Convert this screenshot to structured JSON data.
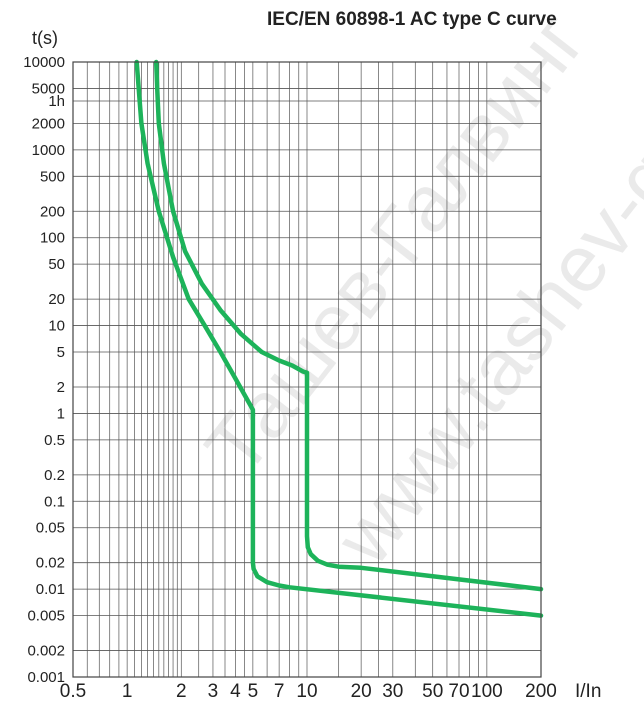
{
  "chart_data": {
    "type": "line",
    "title": "IEC/EN 60898-1 AC type C curve",
    "ylabel": "t(s)",
    "xlabel": "I/In",
    "y_scale": "log",
    "ylim": [
      0.001,
      10000
    ],
    "y_ticks": [
      {
        "value": 10000,
        "label": "10000"
      },
      {
        "value": 5000,
        "label": "5000"
      },
      {
        "value": 3600,
        "label": "1h"
      },
      {
        "value": 2000,
        "label": "2000"
      },
      {
        "value": 1000,
        "label": "1000"
      },
      {
        "value": 500,
        "label": "500"
      },
      {
        "value": 200,
        "label": "200"
      },
      {
        "value": 100,
        "label": "100"
      },
      {
        "value": 50,
        "label": "50"
      },
      {
        "value": 20,
        "label": "20"
      },
      {
        "value": 10,
        "label": "10"
      },
      {
        "value": 5,
        "label": "5"
      },
      {
        "value": 2,
        "label": "2"
      },
      {
        "value": 1,
        "label": "1"
      },
      {
        "value": 0.5,
        "label": "0.5"
      },
      {
        "value": 0.2,
        "label": "0.2"
      },
      {
        "value": 0.1,
        "label": "0.1"
      },
      {
        "value": 0.05,
        "label": "0.05"
      },
      {
        "value": 0.02,
        "label": "0.02"
      },
      {
        "value": 0.01,
        "label": "0.01"
      },
      {
        "value": 0.005,
        "label": "0.005"
      },
      {
        "value": 0.002,
        "label": "0.002"
      },
      {
        "value": 0.001,
        "label": "0.001"
      }
    ],
    "x_scale": "log",
    "xlim": [
      0.5,
      200
    ],
    "x_ticks": [
      {
        "value": 0.5,
        "label": "0.5"
      },
      {
        "value": 1,
        "label": "1"
      },
      {
        "value": 2,
        "label": "2"
      },
      {
        "value": 3,
        "label": "3"
      },
      {
        "value": 4,
        "label": "4"
      },
      {
        "value": 5,
        "label": "5"
      },
      {
        "value": 7,
        "label": "7"
      },
      {
        "value": 10,
        "label": "10"
      },
      {
        "value": 20,
        "label": "20"
      },
      {
        "value": 30,
        "label": "30"
      },
      {
        "value": 50,
        "label": "50"
      },
      {
        "value": 70,
        "label": "70"
      },
      {
        "value": 100,
        "label": "100"
      },
      {
        "value": 200,
        "label": "200"
      }
    ],
    "x_gridlines": [
      0.5,
      0.6,
      0.7,
      0.8,
      0.9,
      1,
      1.1,
      1.2,
      1.3,
      1.4,
      1.5,
      1.6,
      1.7,
      1.8,
      1.9,
      2,
      2.5,
      3,
      3.5,
      4,
      4.5,
      5,
      6,
      7,
      8,
      9,
      10,
      15,
      20,
      25,
      30,
      40,
      50,
      60,
      70,
      80,
      90,
      100,
      200
    ],
    "grid": true,
    "legend": "none",
    "line_color": "#1db35a",
    "series": [
      {
        "x": [
          1.13,
          1.16,
          1.2,
          1.3,
          1.5,
          1.8,
          2.2,
          2.7,
          3.3,
          4.0,
          4.6,
          5,
          5,
          5,
          5.05,
          5.3,
          6,
          7,
          8,
          200
        ],
        "y": [
          10000,
          5000,
          2000,
          700,
          200,
          60,
          20,
          10,
          5,
          2.5,
          1.5,
          1.1,
          0.5,
          0.02,
          0.017,
          0.014,
          0.012,
          0.011,
          0.0105,
          0.005
        ]
      },
      {
        "x": [
          1.45,
          1.47,
          1.5,
          1.6,
          1.8,
          2.1,
          2.6,
          3.3,
          4.3,
          5.6,
          7.0,
          8.3,
          9.5,
          10,
          10,
          10,
          10.1,
          10.5,
          11.5,
          13,
          15,
          20,
          200
        ],
        "y": [
          10000,
          5000,
          2000,
          700,
          200,
          70,
          30,
          15,
          8,
          5,
          4,
          3.5,
          3.0,
          2.9,
          1,
          0.04,
          0.03,
          0.025,
          0.021,
          0.019,
          0.018,
          0.0175,
          0.01
        ]
      }
    ]
  },
  "watermarks": [
    "Ташев-Галвинг",
    "www.tashev-galving.com"
  ]
}
